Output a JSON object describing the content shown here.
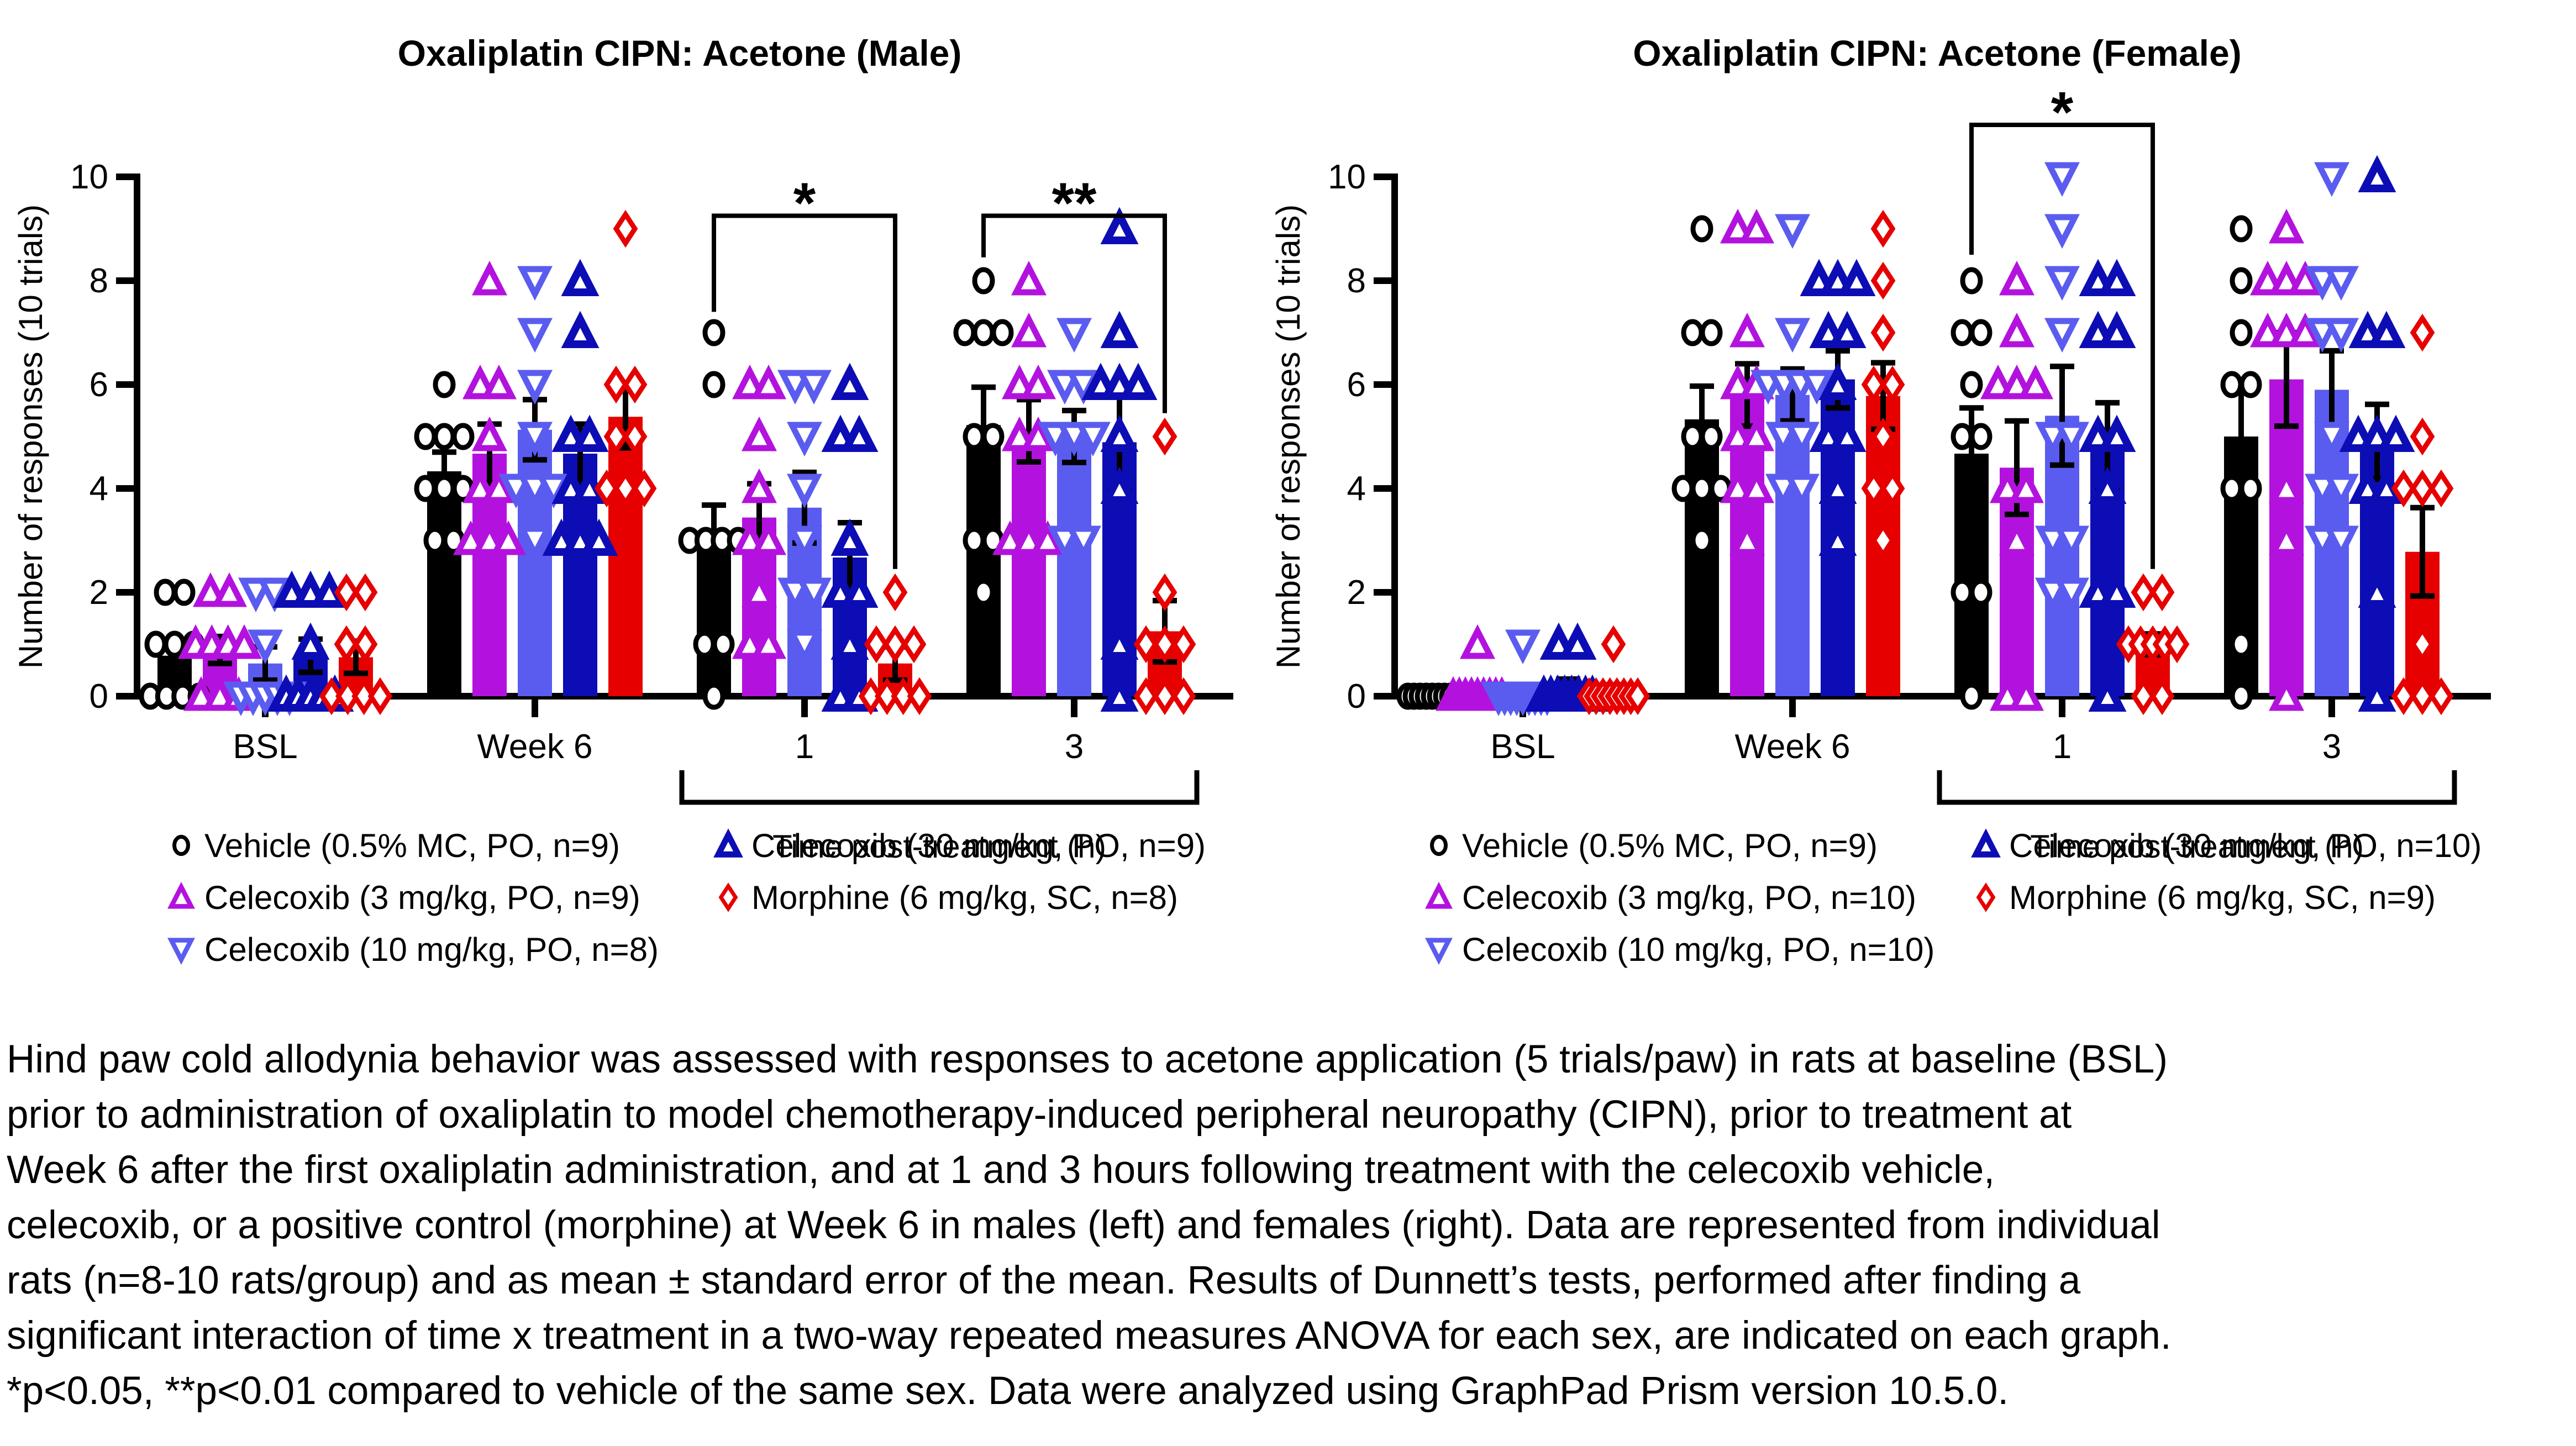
{
  "chart_data": [
    {
      "type": "bar",
      "title": "Oxaliplatin CIPN: Acetone (Male)",
      "ylabel": "Number of responses (10 trials)",
      "ylim": [
        0,
        10
      ],
      "yticks": [
        0,
        2,
        4,
        6,
        8,
        10
      ],
      "categories": [
        "BSL",
        "Week 6",
        "1",
        "3"
      ],
      "category_axis_bracket": {
        "label": "Time post-treatment (h)",
        "from_category": 2,
        "to_category": 3
      },
      "grid": false,
      "legend_position": "below",
      "groups": [
        {
          "label": "Vehicle (0.5% MC, PO, n=9)",
          "color": "#000000",
          "marker": "circle",
          "marker_stroke": 9,
          "means": [
            0.78,
            4.33,
            3.0,
            5.22
          ],
          "sems": [
            0.28,
            0.37,
            0.68,
            0.73
          ],
          "points": [
            [
              0,
              0,
              0,
              0,
              1,
              1,
              1,
              2,
              2
            ],
            [
              3,
              3,
              4,
              4,
              4,
              5,
              5,
              5,
              6
            ],
            [
              0,
              1,
              1,
              3,
              3,
              3,
              3,
              6,
              7
            ],
            [
              2,
              3,
              3,
              5,
              5,
              7,
              7,
              7,
              8
            ]
          ]
        },
        {
          "label": "Celecoxib (3 mg/kg, PO, n=9)",
          "color": "#B312DE",
          "marker": "triangle-up",
          "marker_stroke": 11,
          "means": [
            0.89,
            4.67,
            3.44,
            5.11
          ],
          "sems": [
            0.26,
            0.57,
            0.65,
            0.6
          ],
          "points": [
            [
              0,
              0,
              0,
              1,
              1,
              1,
              1,
              2,
              2
            ],
            [
              3,
              3,
              3,
              4,
              4,
              5,
              6,
              6,
              8
            ],
            [
              1,
              1,
              2,
              3,
              3,
              4,
              5,
              6,
              6
            ],
            [
              3,
              3,
              3,
              5,
              5,
              6,
              6,
              7,
              8
            ]
          ]
        },
        {
          "label": "Celecoxib (10 mg/kg, PO, n=8)",
          "color": "#5A5CF0",
          "marker": "triangle-down",
          "marker_stroke": 11,
          "means": [
            0.63,
            5.13,
            3.63,
            5.0
          ],
          "sems": [
            0.32,
            0.58,
            0.68,
            0.5
          ],
          "points": [
            [
              0,
              0,
              0,
              0,
              0,
              1,
              2,
              2
            ],
            [
              3,
              4,
              4,
              4,
              5,
              6,
              7,
              8
            ],
            [
              1,
              2,
              2,
              3,
              4,
              5,
              6,
              6
            ],
            [
              3,
              3,
              5,
              5,
              5,
              6,
              6,
              7
            ]
          ]
        },
        {
          "label": "Celecoxib (30 mg/kg, PO, n=9)",
          "color": "#0D0DB5",
          "marker": "triangle-up",
          "marker_stroke": 14,
          "means": [
            0.78,
            4.67,
            2.67,
            4.89
          ],
          "sems": [
            0.32,
            0.57,
            0.67,
            0.95
          ],
          "points": [
            [
              0,
              0,
              0,
              0,
              0,
              1,
              2,
              2,
              2
            ],
            [
              3,
              3,
              3,
              4,
              4,
              5,
              5,
              7,
              8
            ],
            [
              0,
              0,
              1,
              2,
              2,
              3,
              5,
              5,
              6
            ],
            [
              0,
              1,
              4,
              5,
              6,
              6,
              6,
              7,
              9
            ]
          ]
        },
        {
          "label": "Morphine (6 mg/kg, SC, n=8)",
          "color": "#E60000",
          "marker": "diamond",
          "marker_stroke": 9,
          "means": [
            0.75,
            5.38,
            0.63,
            1.25
          ],
          "sems": [
            0.31,
            0.6,
            0.32,
            0.59
          ],
          "points": [
            [
              0,
              0,
              0,
              0,
              1,
              1,
              2,
              2
            ],
            [
              4,
              4,
              4,
              5,
              5,
              6,
              6,
              9
            ],
            [
              0,
              0,
              0,
              0,
              1,
              1,
              1,
              2
            ],
            [
              0,
              0,
              0,
              1,
              1,
              1,
              2,
              5
            ]
          ]
        }
      ],
      "significance": [
        {
          "label": "*",
          "category": 2,
          "from_group": 0,
          "to_group": 4,
          "bar_y": 9.25,
          "label_y": 9.8,
          "from_drop_y": 7.4,
          "to_drop_y": 2.45
        },
        {
          "label": "**",
          "category": 3,
          "from_group": 0,
          "to_group": 4,
          "bar_y": 9.25,
          "label_y": 9.8,
          "from_drop_y": 8.45,
          "to_drop_y": 5.45
        }
      ]
    },
    {
      "type": "bar",
      "title": "Oxaliplatin CIPN: Acetone (Female)",
      "ylabel": "Number of responses (10 trials)",
      "ylim": [
        0,
        10
      ],
      "yticks": [
        0,
        2,
        4,
        6,
        8,
        10
      ],
      "categories": [
        "BSL",
        "Week 6",
        "1",
        "3"
      ],
      "category_axis_bracket": {
        "label": "Time post-treatment (h)",
        "from_category": 2,
        "to_category": 3
      },
      "grid": false,
      "legend_position": "below",
      "groups": [
        {
          "label": "Vehicle (0.5% MC, PO, n=9)",
          "color": "#000000",
          "marker": "circle",
          "marker_stroke": 9,
          "means": [
            0.0,
            5.33,
            4.67,
            5.0
          ],
          "sems": [
            0.0,
            0.64,
            0.88,
            0.92
          ],
          "points": [
            [
              0,
              0,
              0,
              0,
              0,
              0,
              0,
              0,
              0
            ],
            [
              3,
              4,
              4,
              4,
              5,
              5,
              7,
              7,
              9
            ],
            [
              0,
              2,
              2,
              5,
              5,
              6,
              7,
              7,
              8
            ],
            [
              0,
              1,
              4,
              4,
              6,
              6,
              7,
              8,
              9
            ]
          ]
        },
        {
          "label": "Celecoxib (3 mg/kg, PO, n=10)",
          "color": "#B312DE",
          "marker": "triangle-up",
          "marker_stroke": 11,
          "means": [
            0.1,
            5.8,
            4.4,
            6.1
          ],
          "sems": [
            0.1,
            0.6,
            0.9,
            0.9
          ],
          "points": [
            [
              0,
              0,
              0,
              0,
              0,
              0,
              0,
              0,
              0,
              1
            ],
            [
              3,
              4,
              4,
              5,
              5,
              6,
              6,
              7,
              9,
              9
            ],
            [
              0,
              0,
              3,
              4,
              4,
              6,
              6,
              6,
              7,
              8
            ],
            [
              0,
              3,
              4,
              7,
              7,
              7,
              8,
              8,
              8,
              9
            ]
          ]
        },
        {
          "label": "Celecoxib (10 mg/kg, PO, n=10)",
          "color": "#5A5CF0",
          "marker": "triangle-down",
          "marker_stroke": 11,
          "means": [
            0.1,
            5.8,
            5.4,
            5.9
          ],
          "sems": [
            0.1,
            0.5,
            0.95,
            0.75
          ],
          "points": [
            [
              0,
              0,
              0,
              0,
              0,
              0,
              0,
              0,
              0,
              1
            ],
            [
              4,
              4,
              5,
              5,
              6,
              6,
              6,
              6,
              7,
              9
            ],
            [
              2,
              2,
              3,
              3,
              5,
              5,
              7,
              8,
              9,
              10
            ],
            [
              3,
              3,
              4,
              4,
              5,
              7,
              7,
              8,
              8,
              10
            ]
          ]
        },
        {
          "label": "Celecoxib (30 mg/kg, PO, n=10)",
          "color": "#0D0DB5",
          "marker": "triangle-up",
          "marker_stroke": 14,
          "means": [
            0.2,
            6.1,
            4.8,
            4.9
          ],
          "sems": [
            0.13,
            0.55,
            0.85,
            0.72
          ],
          "points": [
            [
              0,
              0,
              0,
              0,
              0,
              0,
              0,
              0,
              1,
              1
            ],
            [
              3,
              4,
              5,
              5,
              6,
              7,
              7,
              8,
              8,
              8
            ],
            [
              0,
              2,
              2,
              4,
              5,
              5,
              7,
              7,
              8,
              8
            ],
            [
              0,
              2,
              4,
              4,
              5,
              5,
              5,
              7,
              7,
              10
            ]
          ]
        },
        {
          "label": "Morphine (6 mg/kg, SC, n=9)",
          "color": "#E60000",
          "marker": "diamond",
          "marker_stroke": 9,
          "means": [
            0.11,
            5.78,
            1.0,
            2.78
          ],
          "sems": [
            0.11,
            0.64,
            0.2,
            0.85
          ],
          "points": [
            [
              0,
              0,
              0,
              0,
              0,
              0,
              0,
              0,
              1
            ],
            [
              3,
              4,
              4,
              5,
              6,
              6,
              7,
              8,
              9
            ],
            [
              0,
              0,
              1,
              1,
              1,
              1,
              1,
              2,
              2
            ],
            [
              0,
              0,
              0,
              1,
              4,
              4,
              4,
              5,
              7
            ]
          ]
        }
      ],
      "significance": [
        {
          "label": "*",
          "category": 2,
          "from_group": 0,
          "to_group": 4,
          "bar_y": 11.0,
          "label_y": 11.55,
          "from_drop_y": 8.5,
          "to_drop_y": 2.45
        }
      ]
    }
  ],
  "caption": {
    "lines": [
      "Hind paw cold allodynia behavior was assessed with responses to acetone application (5 trials/paw) in rats at baseline (BSL)",
      "prior to administration of oxaliplatin to model chemotherapy-induced peripheral neuropathy (CIPN), prior to treatment at",
      "Week 6 after the first oxaliplatin administration, and at 1 and 3 hours following treatment with the celecoxib vehicle,",
      "celecoxib, or a positive control (morphine) at Week 6 in males (left) and females (right). Data are represented from individual",
      "rats (n=8-10 rats/group) and as mean ± standard error of the mean. Results of Dunnett’s tests, performed after finding a",
      "significant interaction of time x treatment in a two-way repeated measures ANOVA for each sex, are indicated on each graph.",
      "*p<0.05, **p<0.01 compared to vehicle of the same sex. Data were analyzed using GraphPad Prism version 10.5.0."
    ]
  }
}
